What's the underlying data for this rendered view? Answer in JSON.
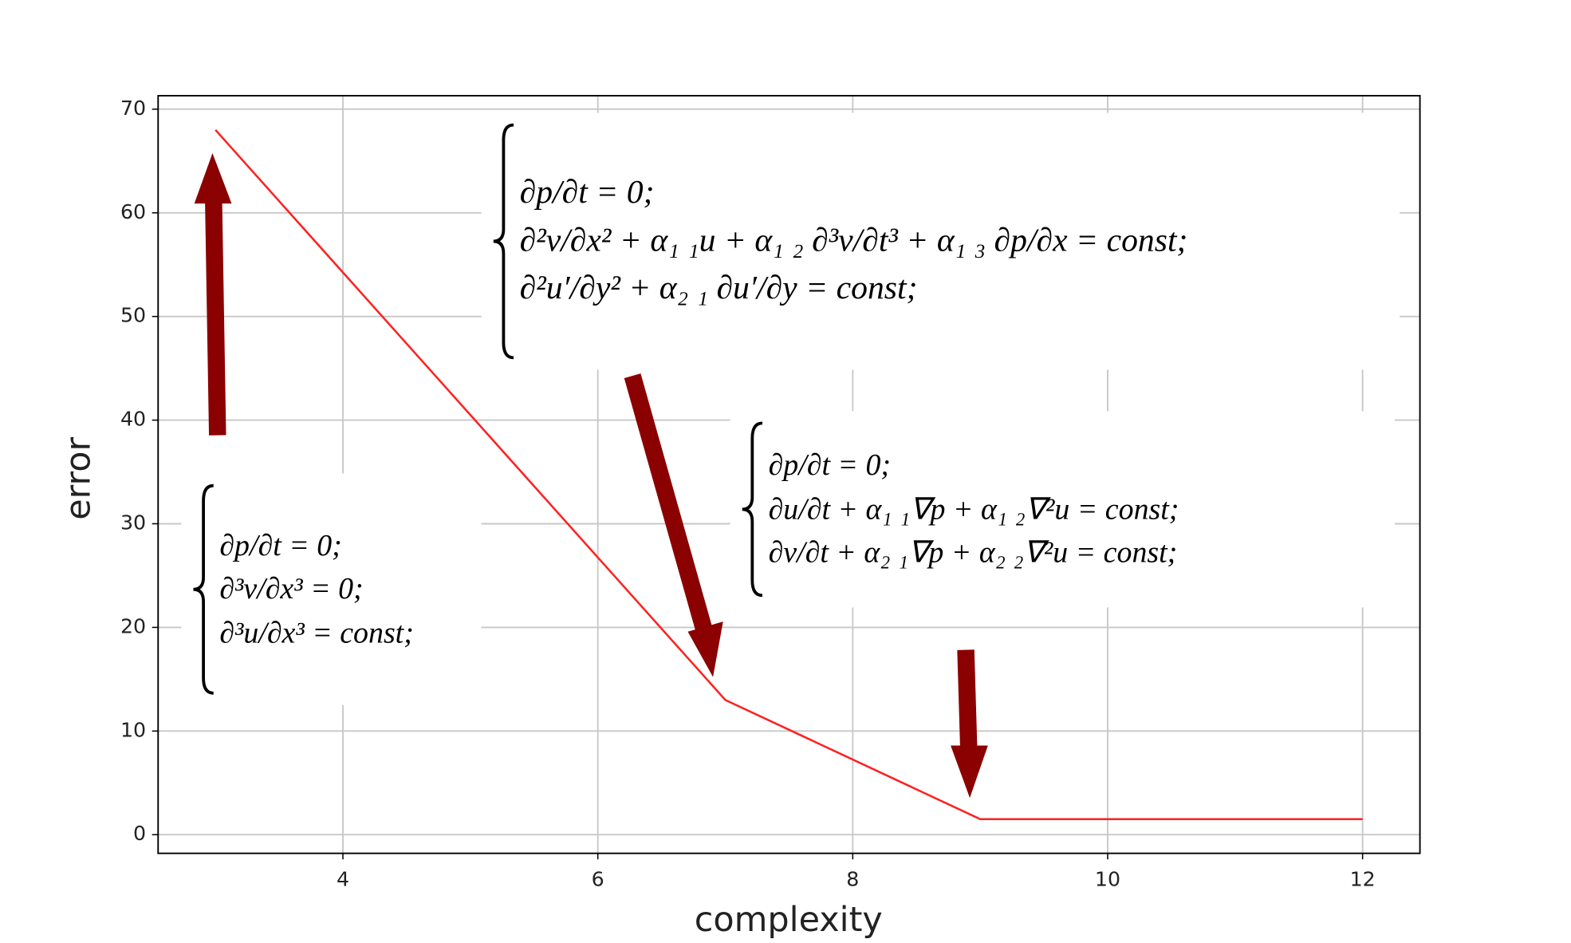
{
  "chart_data": {
    "type": "line",
    "xlabel": "complexity",
    "ylabel": "error",
    "x": [
      3,
      7,
      9,
      12
    ],
    "values": [
      68,
      13,
      1.5,
      1.5
    ],
    "color": "#ff2020",
    "xlim": [
      2.55,
      12.45
    ],
    "ylim": [
      -1.8,
      71.3
    ],
    "xticks": [
      4,
      6,
      8,
      10,
      12
    ],
    "yticks": [
      0,
      10,
      20,
      30,
      40,
      50,
      60,
      70
    ],
    "grid": true,
    "annotations": [
      {
        "lines": [
          "∂p/∂t = 0;",
          "∂²v/∂x² + α₁ ₁u + α₁ ₂ ∂³v/∂t³ + α₁ ₃ ∂p/∂x = const;",
          "∂²u′/∂y² + α₂ ₁ ∂u′/∂y = const;"
        ]
      },
      {
        "lines": [
          "∂p/∂t = 0;",
          "∂u/∂t + α₁ ₁∇p + α₁ ₂∇²u = const;",
          "∂v/∂t + α₂ ₁∇p + α₂ ₂∇²u = const;"
        ]
      },
      {
        "lines": [
          "∂p/∂t = 0;",
          "∂³v/∂x³ = 0;",
          "∂³u/∂x³ = const;"
        ]
      }
    ]
  }
}
